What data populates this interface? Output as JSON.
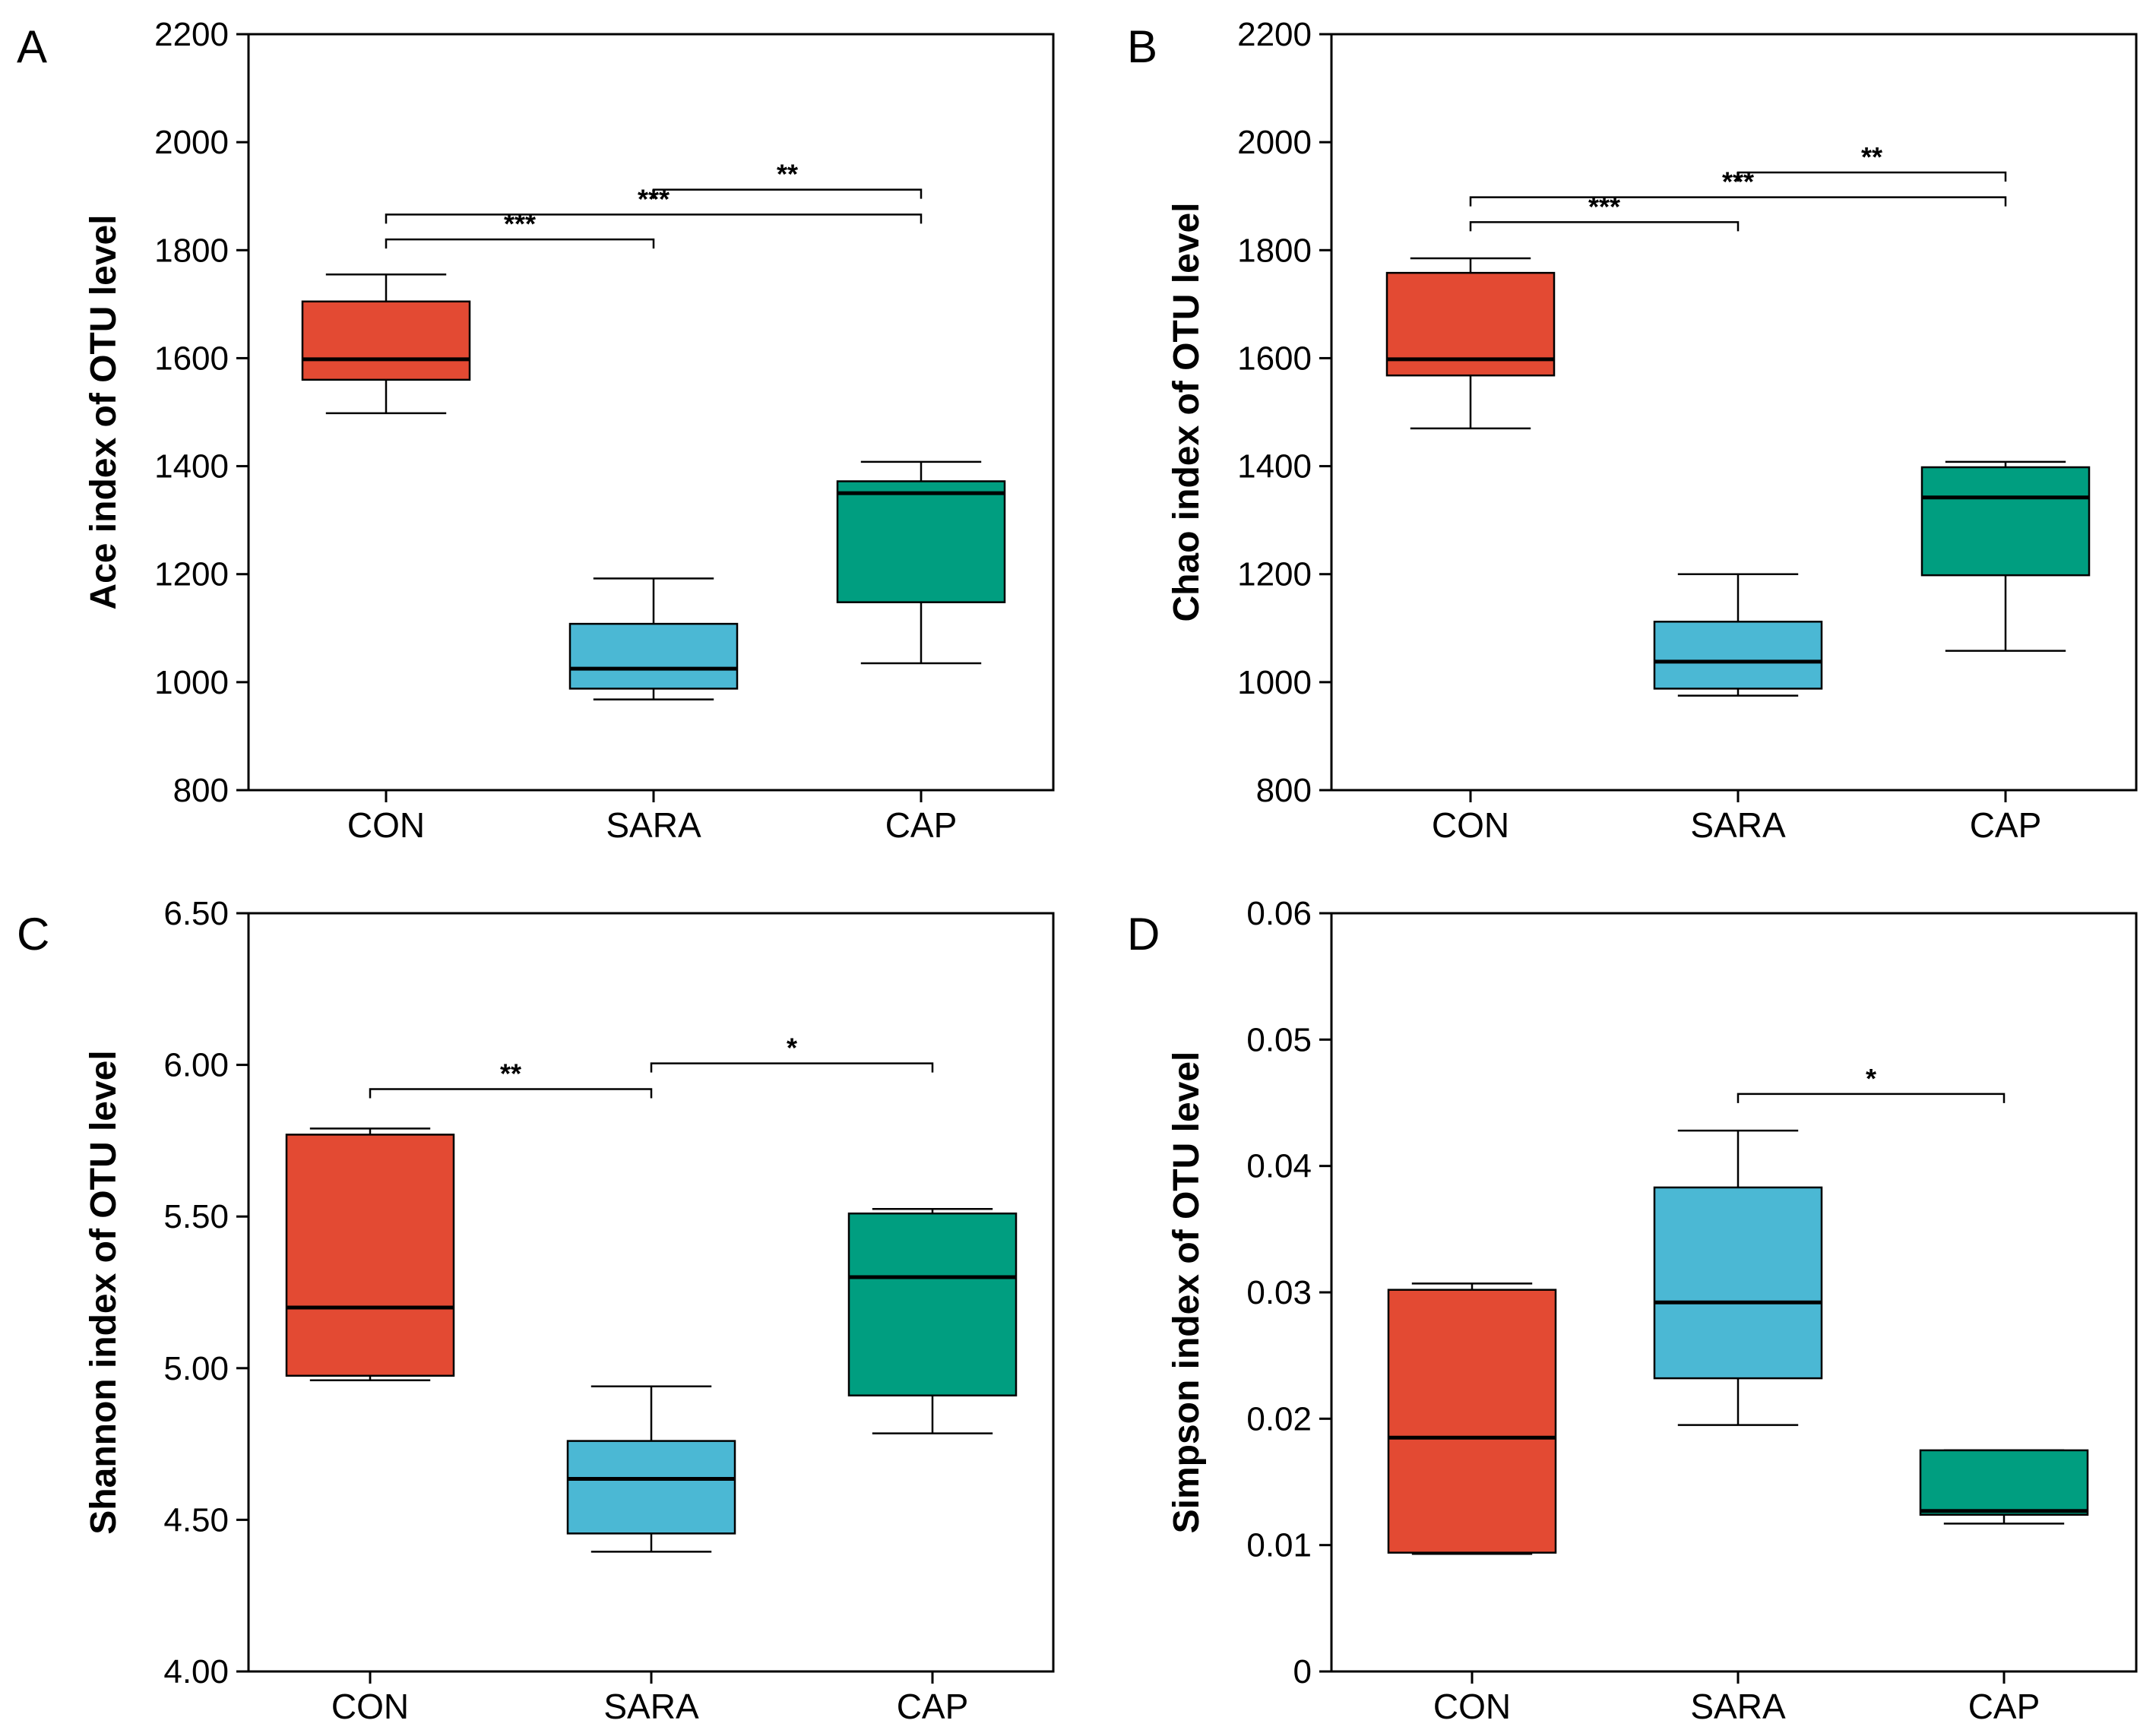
{
  "chart_data": [
    {
      "type": "box",
      "panel": "A",
      "ylabel": "Ace index of OTU level",
      "categories": [
        "CON",
        "SARA",
        "CAP"
      ],
      "colors": [
        "#e34a33",
        "#4bb8d4",
        "#009e80"
      ],
      "ylim": [
        800,
        2200
      ],
      "yticks": [
        800,
        1000,
        1200,
        1400,
        1600,
        1800,
        2000,
        2200
      ],
      "ytick_labels": [
        "800",
        "1000",
        "1200",
        "1400",
        "1600",
        "1800",
        "2000",
        "2200"
      ],
      "boxes": [
        {
          "min": 1498,
          "q1": 1560,
          "median": 1598,
          "q3": 1705,
          "max": 1755
        },
        {
          "min": 968,
          "q1": 988,
          "median": 1025,
          "q3": 1108,
          "max": 1192
        },
        {
          "min": 1035,
          "q1": 1148,
          "median": 1350,
          "q3": 1372,
          "max": 1408
        }
      ],
      "significance": [
        {
          "from": 0,
          "to": 1,
          "y": 1820,
          "label": "***"
        },
        {
          "from": 0,
          "to": 2,
          "y": 1866,
          "label": "***"
        },
        {
          "from": 1,
          "to": 2,
          "y": 1912,
          "label": "**"
        }
      ]
    },
    {
      "type": "box",
      "panel": "B",
      "ylabel": "Chao index of OTU level",
      "categories": [
        "CON",
        "SARA",
        "CAP"
      ],
      "colors": [
        "#e34a33",
        "#4bb8d4",
        "#009e80"
      ],
      "ylim": [
        800,
        2200
      ],
      "yticks": [
        800,
        1000,
        1200,
        1400,
        1600,
        1800,
        2000,
        2200
      ],
      "ytick_labels": [
        "800",
        "1000",
        "1200",
        "1400",
        "1600",
        "1800",
        "2000",
        "2200"
      ],
      "boxes": [
        {
          "min": 1470,
          "q1": 1568,
          "median": 1598,
          "q3": 1758,
          "max": 1785
        },
        {
          "min": 975,
          "q1": 988,
          "median": 1038,
          "q3": 1112,
          "max": 1200
        },
        {
          "min": 1058,
          "q1": 1198,
          "median": 1342,
          "q3": 1398,
          "max": 1408
        }
      ],
      "significance": [
        {
          "from": 0,
          "to": 1,
          "y": 1852,
          "label": "***"
        },
        {
          "from": 0,
          "to": 2,
          "y": 1898,
          "label": "***"
        },
        {
          "from": 1,
          "to": 2,
          "y": 1944,
          "label": "**"
        }
      ]
    },
    {
      "type": "box",
      "panel": "C",
      "ylabel": "Shannon index of OTU level",
      "categories": [
        "CON",
        "SARA",
        "CAP"
      ],
      "colors": [
        "#e34a33",
        "#4bb8d4",
        "#009e80"
      ],
      "ylim": [
        4.0,
        6.5
      ],
      "yticks": [
        4.0,
        4.5,
        5.0,
        5.5,
        6.0,
        6.5
      ],
      "ytick_labels": [
        "4.00",
        "4.50",
        "5.00",
        "5.50",
        "6.00",
        "6.50"
      ],
      "boxes": [
        {
          "min": 4.96,
          "q1": 4.975,
          "median": 5.2,
          "q3": 5.77,
          "max": 5.79
        },
        {
          "min": 4.395,
          "q1": 4.455,
          "median": 4.635,
          "q3": 4.76,
          "max": 4.94
        },
        {
          "min": 4.785,
          "q1": 4.91,
          "median": 5.3,
          "q3": 5.51,
          "max": 5.525
        }
      ],
      "significance": [
        {
          "from": 0,
          "to": 1,
          "y": 5.92,
          "label": "**"
        },
        {
          "from": 1,
          "to": 2,
          "y": 6.005,
          "label": "*"
        }
      ]
    },
    {
      "type": "box",
      "panel": "D",
      "ylabel": "Simpson index of OTU level",
      "categories": [
        "CON",
        "SARA",
        "CAP"
      ],
      "colors": [
        "#e34a33",
        "#4bb8d4",
        "#009e80"
      ],
      "ylim": [
        0,
        0.06
      ],
      "yticks": [
        0,
        0.01,
        0.02,
        0.03,
        0.04,
        0.05,
        0.06
      ],
      "ytick_labels": [
        "0",
        "0.01",
        "0.02",
        "0.03",
        "0.04",
        "0.05",
        "0.06"
      ],
      "boxes": [
        {
          "min": 0.0093,
          "q1": 0.0094,
          "median": 0.0185,
          "q3": 0.0302,
          "max": 0.0307
        },
        {
          "min": 0.0195,
          "q1": 0.0232,
          "median": 0.0292,
          "q3": 0.0383,
          "max": 0.0428
        },
        {
          "min": 0.0117,
          "q1": 0.0124,
          "median": 0.0127,
          "q3": 0.0175,
          "max": 0.0175
        }
      ],
      "significance": [
        {
          "from": 1,
          "to": 2,
          "y": 0.0457,
          "label": "*"
        }
      ]
    }
  ]
}
